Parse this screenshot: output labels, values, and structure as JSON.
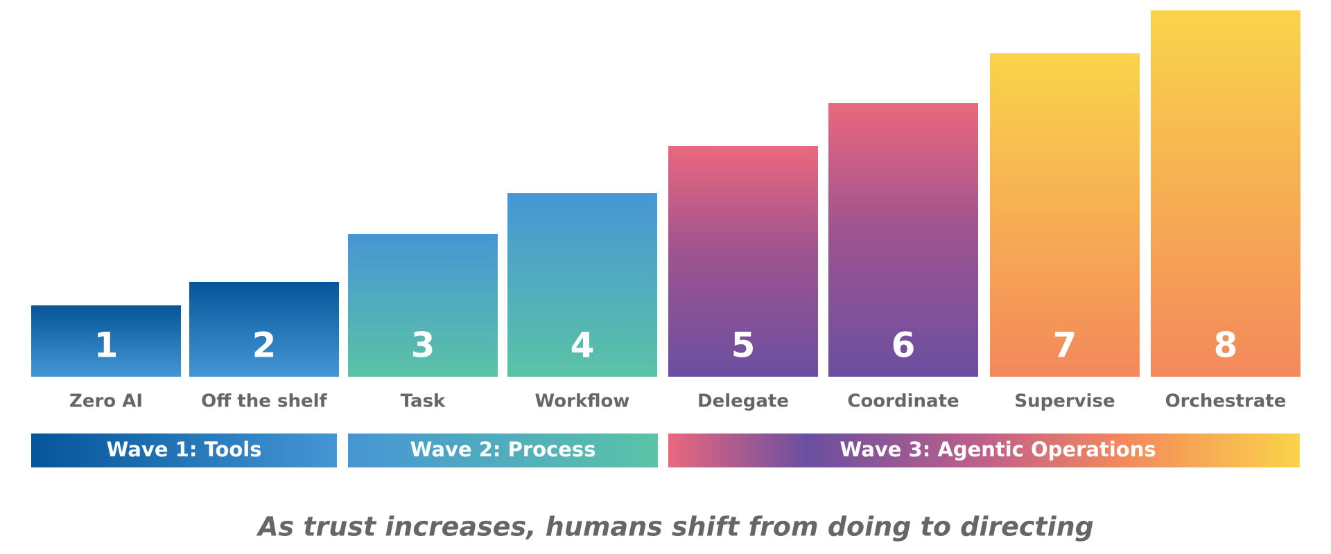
{
  "steps": [
    {
      "number": "1",
      "label": "Zero AI"
    },
    {
      "number": "2",
      "label": "Off the shelf"
    },
    {
      "number": "3",
      "label": "Task"
    },
    {
      "number": "4",
      "label": "Workflow"
    },
    {
      "number": "5",
      "label": "Delegate"
    },
    {
      "number": "6",
      "label": "Coordinate"
    },
    {
      "number": "7",
      "label": "Supervise"
    },
    {
      "number": "8",
      "label": "Orchestrate"
    }
  ],
  "waves": [
    {
      "label": "Wave 1: Tools"
    },
    {
      "label": "Wave 2: Process"
    },
    {
      "label": "Wave 3: Agentic Operations"
    }
  ],
  "caption": "As trust increases, humans shift from doing to directing"
}
